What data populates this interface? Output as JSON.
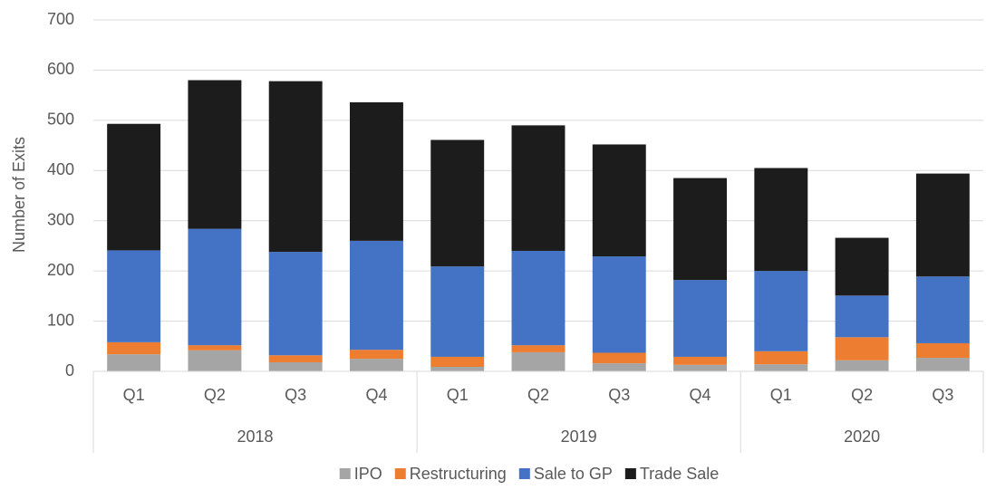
{
  "chart_data": {
    "type": "stacked_bar",
    "y_label": "Number of Exits",
    "groups": [
      {
        "label": "2018",
        "categories": [
          "Q1",
          "Q2",
          "Q3",
          "Q4"
        ]
      },
      {
        "label": "2019",
        "categories": [
          "Q1",
          "Q2",
          "Q3",
          "Q4"
        ]
      },
      {
        "label": "2020",
        "categories": [
          "Q1",
          "Q2",
          "Q3"
        ]
      }
    ],
    "series": [
      {
        "name": "IPO",
        "color": "#a5a5a5",
        "values": [
          34,
          42,
          18,
          25,
          9,
          38,
          16,
          13,
          14,
          22,
          27
        ]
      },
      {
        "name": "Restructuring",
        "color": "#ed7d31",
        "values": [
          24,
          10,
          14,
          18,
          20,
          14,
          21,
          16,
          26,
          46,
          29
        ]
      },
      {
        "name": "Sale to GP",
        "color": "#4472c4",
        "values": [
          183,
          232,
          206,
          217,
          180,
          188,
          192,
          153,
          160,
          83,
          133
        ]
      },
      {
        "name": "Trade Sale",
        "color": "#1c1c1c",
        "values": [
          252,
          296,
          340,
          276,
          252,
          250,
          223,
          203,
          205,
          115,
          205
        ]
      }
    ],
    "ylim": [
      0,
      700
    ],
    "yticks": [
      0,
      100,
      200,
      300,
      400,
      500,
      600,
      700
    ],
    "grid": true,
    "legend": "bottom"
  }
}
